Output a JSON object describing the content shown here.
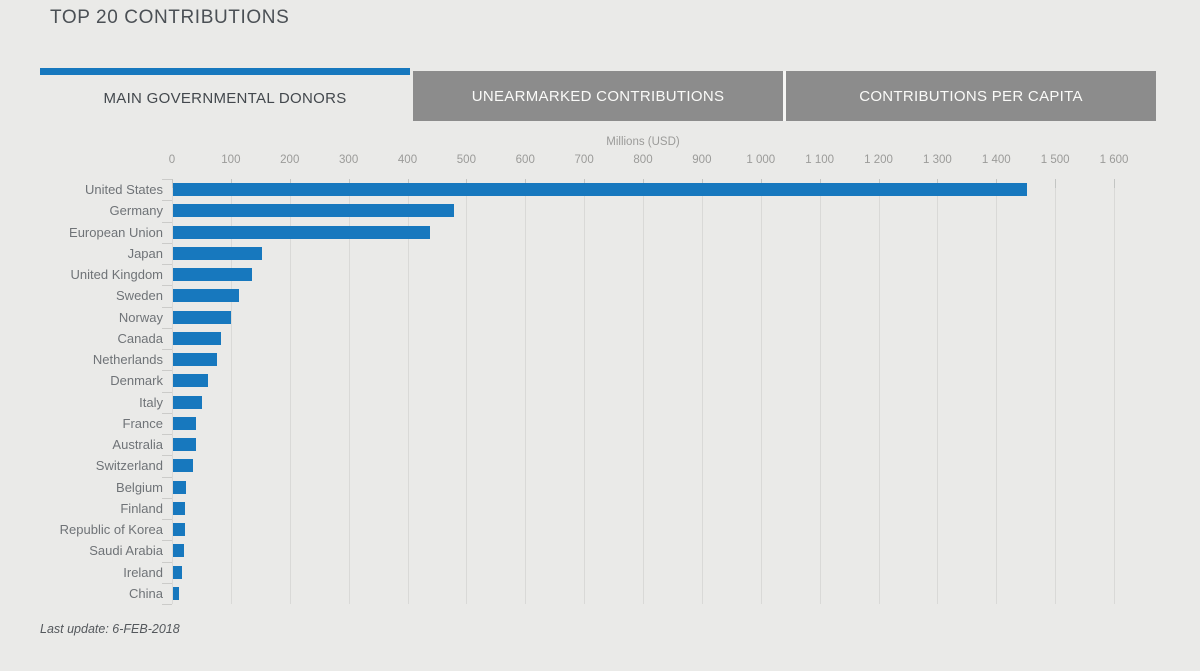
{
  "title": "TOP 20 CONTRIBUTIONS",
  "tabs": [
    {
      "label": "MAIN GOVERNMENTAL DONORS",
      "active": true
    },
    {
      "label": "UNEARMARKED CONTRIBUTIONS",
      "active": false
    },
    {
      "label": "CONTRIBUTIONS PER CAPITA",
      "active": false
    }
  ],
  "footer": {
    "last_update": "Last update: 6-FEB-2018"
  },
  "colors": {
    "accent_blue": "#1778be",
    "bar_blue": "#1778be",
    "inactive_tab_gray": "#8c8c8c",
    "page_background": "#eaeae8"
  },
  "chart_data": {
    "type": "bar",
    "orientation": "horizontal",
    "title": "TOP 20 CONTRIBUTIONS",
    "xlabel": "Millions (USD)",
    "ylabel": "",
    "xlim": [
      0,
      1600
    ],
    "tick_interval": 100,
    "tick_labels": [
      "0",
      "100",
      "200",
      "300",
      "400",
      "500",
      "600",
      "700",
      "800",
      "900",
      "1 000",
      "1 100",
      "1 200",
      "1 300",
      "1 400",
      "1 500",
      "1 600"
    ],
    "grid": true,
    "axis_position": "top",
    "categories": [
      "United States",
      "Germany",
      "European Union",
      "Japan",
      "United Kingdom",
      "Sweden",
      "Norway",
      "Canada",
      "Netherlands",
      "Denmark",
      "Italy",
      "France",
      "Australia",
      "Switzerland",
      "Belgium",
      "Finland",
      "Republic of Korea",
      "Saudi Arabia",
      "Ireland",
      "China"
    ],
    "values": [
      1450,
      477,
      436,
      152,
      134,
      112,
      98,
      82,
      75,
      59,
      50,
      39,
      39,
      34,
      22,
      21,
      21,
      18,
      15,
      10
    ]
  }
}
